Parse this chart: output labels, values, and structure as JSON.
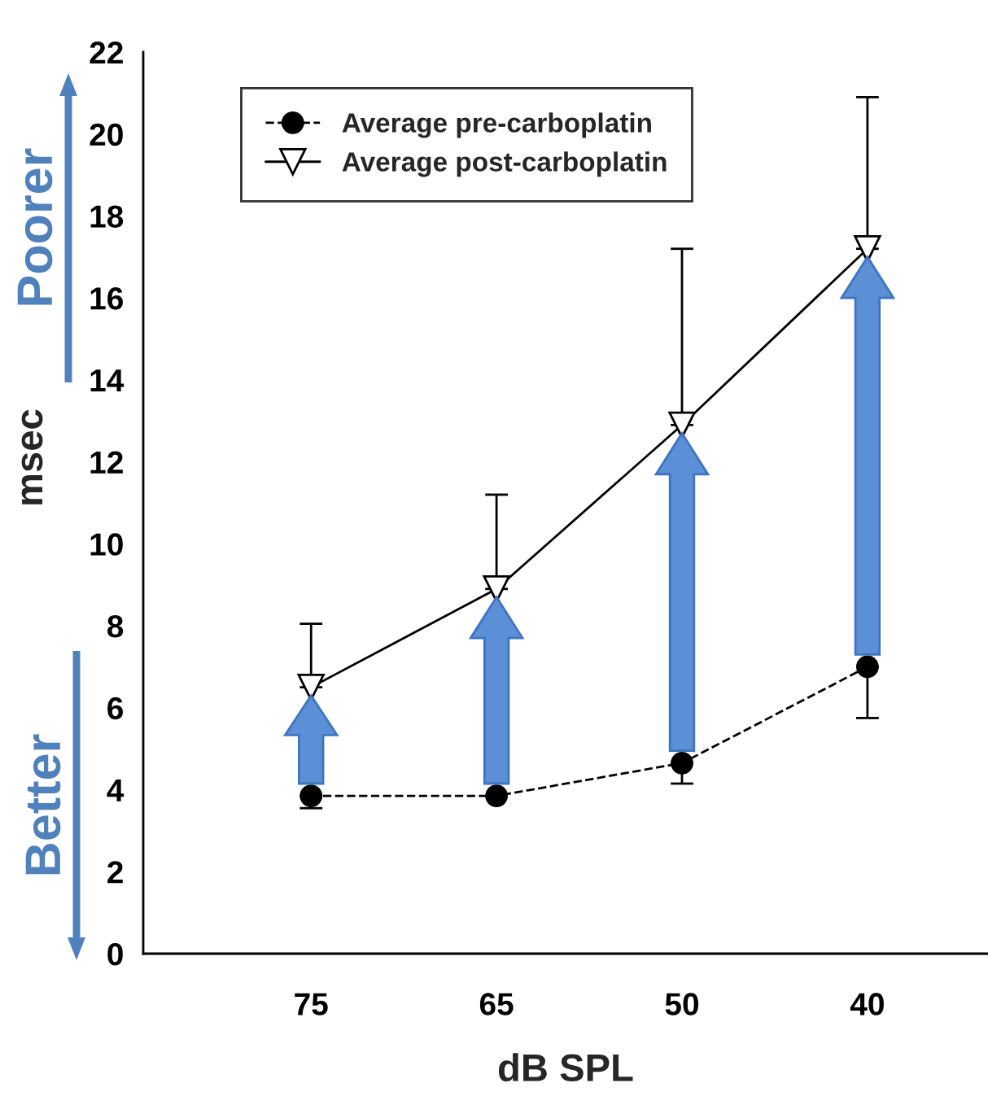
{
  "chart_data": {
    "type": "line",
    "xlabel": "dB SPL",
    "ylabel": "msec",
    "categories": [
      "75",
      "65",
      "50",
      "40"
    ],
    "series": [
      {
        "name": "Average pre-carboplatin",
        "color": "#000000",
        "values": [
          3.85,
          3.85,
          4.65,
          7.0
        ],
        "marker": "circle",
        "line_style": "dashed",
        "errors": [
          [
            3.55,
            3.85
          ],
          null,
          [
            4.15,
            4.65
          ],
          [
            5.75,
            7.0
          ]
        ]
      },
      {
        "name": "Average post-carboplatin",
        "color": "#000000",
        "values": [
          6.5,
          8.9,
          12.9,
          17.2
        ],
        "marker": "triangle",
        "line_style": "solid",
        "errors": [
          [
            6.5,
            8.05
          ],
          [
            8.9,
            11.2
          ],
          [
            12.9,
            17.2
          ],
          [
            17.2,
            20.9
          ]
        ]
      }
    ],
    "ylim": [
      0,
      22
    ],
    "yticks": [
      0,
      2,
      4,
      6,
      8,
      10,
      12,
      14,
      16,
      18,
      20,
      22
    ],
    "grid": false,
    "legend": "top left",
    "annotations": [
      "Poorer",
      "Better"
    ]
  }
}
